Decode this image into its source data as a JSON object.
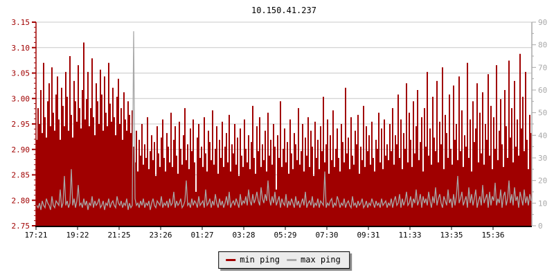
{
  "window": {
    "title": "10.150.41.237"
  },
  "colors": {
    "min_ping": "#a00000",
    "max_ping": "#a8a8a8",
    "grid": "#c8c8c8",
    "left_axis": "#a00000",
    "right_axis": "#a8a8a8",
    "bottom_axis": "#000000",
    "tick_label_left": "#a00000",
    "tick_label_right": "#a8a8a8",
    "tick_label_x": "#000000"
  },
  "legend": {
    "items": [
      {
        "label": "min ping",
        "color": "#a00000"
      },
      {
        "label": "max ping",
        "color": "#a8a8a8"
      }
    ]
  },
  "chart_data": {
    "type": "area",
    "title": "10.150.41.237",
    "xlabel": "",
    "ylabel": "",
    "x_tick_labels": [
      "17:21",
      "19:22",
      "21:25",
      "23:26",
      "01:27",
      "03:28",
      "05:29",
      "07:30",
      "09:31",
      "11:33",
      "13:35",
      "15:36"
    ],
    "left_axis_tick_labels": [
      "3.15",
      "3.10",
      "3.05",
      "3.00",
      "2.95",
      "2.90",
      "2.85",
      "2.80",
      "2.75"
    ],
    "left_ylim": [
      2.75,
      3.15
    ],
    "right_axis_tick_labels": [
      "90",
      "80",
      "70",
      "60",
      "50",
      "40",
      "30",
      "20",
      "10",
      "0"
    ],
    "right_ylim": [
      0,
      90
    ],
    "grid": "horizontal-only",
    "legend_position": "bottom-center",
    "series_value_units": "right-axis units (0-90); left axis equivalent = 2.75 + v/90*0.40",
    "series": [
      {
        "name": "min ping",
        "style": "filled-bars-from-baseline",
        "color": "#a00000",
        "values": [
          38,
          52,
          45,
          60,
          41,
          72,
          48,
          39,
          55,
          63,
          44,
          70,
          50,
          42,
          58,
          66,
          47,
          38,
          61,
          53,
          44,
          68,
          57,
          42,
          75,
          49,
          39,
          64,
          55,
          46,
          71,
          52,
          43,
          60,
          81,
          47,
          56,
          68,
          44,
          52,
          74,
          48,
          40,
          63,
          55,
          45,
          69,
          58,
          42,
          66,
          50,
          44,
          72,
          54,
          46,
          61,
          48,
          40,
          57,
          65,
          45,
          52,
          38,
          59,
          47,
          42,
          55,
          49,
          41,
          51,
          35,
          28,
          42,
          24,
          38,
          31,
          45,
          27,
          36,
          30,
          48,
          25,
          33,
          40,
          29,
          37,
          22,
          44,
          32,
          26,
          39,
          47,
          30,
          24,
          41,
          35,
          28,
          50,
          26,
          38,
          44,
          31,
          23,
          46,
          34,
          27,
          40,
          52,
          29,
          36,
          25,
          43,
          33,
          47,
          28,
          15,
          39,
          45,
          30,
          35,
          26,
          48,
          32,
          24,
          42,
          37,
          29,
          51,
          27,
          34,
          44,
          23,
          38,
          30,
          46,
          26,
          35,
          41,
          28,
          49,
          24,
          36,
          32,
          45,
          27,
          39,
          22,
          43,
          31,
          26,
          47,
          34,
          28,
          40,
          25,
          37,
          53,
          30,
          23,
          44,
          33,
          48,
          26,
          36,
          29,
          42,
          24,
          50,
          31,
          38,
          27,
          45,
          35,
          16,
          40,
          30,
          55,
          26,
          34,
          43,
          28,
          37,
          23,
          47,
          32,
          25,
          41,
          36,
          29,
          52,
          27,
          33,
          45,
          24,
          39,
          31,
          48,
          26,
          42,
          35,
          22,
          46,
          30,
          38,
          25,
          44,
          33,
          57,
          28,
          36,
          47,
          23,
          40,
          29,
          51,
          26,
          34,
          43,
          30,
          24,
          45,
          37,
          28,
          61,
          32,
          39,
          25,
          48,
          31,
          27,
          42,
          36,
          49,
          23,
          35,
          29,
          53,
          26,
          44,
          33,
          40,
          27,
          46,
          30,
          24,
          38,
          34,
          50,
          28,
          43,
          25,
          47,
          31,
          36,
          29,
          45,
          33,
          52,
          27,
          40,
          36,
          58,
          30,
          47,
          25,
          41,
          34,
          63,
          28,
          50,
          38,
          26,
          55,
          32,
          44,
          60,
          29,
          37,
          48,
          24,
          52,
          35,
          68,
          31,
          43,
          27,
          57,
          39,
          33,
          64,
          28,
          46,
          36,
          70,
          25,
          49,
          41,
          30,
          58,
          34,
          27,
          62,
          38,
          45,
          29,
          66,
          33,
          51,
          26,
          40,
          35,
          72,
          30,
          47,
          24,
          55,
          37,
          43,
          63,
          28,
          50,
          32,
          59,
          27,
          45,
          38,
          67,
          31,
          53,
          25,
          48,
          34,
          71,
          29,
          42,
          56,
          36,
          26,
          60,
          44,
          30,
          73,
          39,
          52,
          28,
          64,
          35,
          47,
          31,
          76,
          43,
          57,
          33,
          68,
          38,
          25,
          49,
          41
        ]
      },
      {
        "name": "max ping",
        "style": "line",
        "color": "#a8a8a8",
        "values": [
          9,
          8,
          10,
          7,
          11,
          9,
          8,
          12,
          10,
          9,
          7,
          13,
          9,
          8,
          11,
          10,
          9,
          16,
          8,
          10,
          22,
          9,
          11,
          8,
          10,
          25,
          9,
          12,
          8,
          11,
          18,
          9,
          10,
          8,
          12,
          9,
          11,
          7,
          10,
          9,
          13,
          8,
          11,
          9,
          10,
          12,
          8,
          9,
          11,
          7,
          10,
          9,
          12,
          8,
          10,
          11,
          9,
          8,
          13,
          10,
          9,
          11,
          8,
          10,
          9,
          12,
          7,
          10,
          8,
          9,
          86,
          12,
          9,
          10,
          8,
          11,
          9,
          12,
          8,
          10,
          9,
          11,
          7,
          10,
          12,
          9,
          8,
          11,
          10,
          9,
          13,
          8,
          10,
          9,
          11,
          8,
          12,
          9,
          10,
          15,
          8,
          11,
          9,
          10,
          12,
          8,
          9,
          11,
          20,
          9,
          10,
          8,
          12,
          9,
          11,
          10,
          8,
          13,
          9,
          10,
          11,
          8,
          16,
          9,
          10,
          12,
          8,
          11,
          9,
          14,
          10,
          8,
          12,
          9,
          11,
          8,
          10,
          13,
          9,
          15,
          8,
          10,
          11,
          9,
          12,
          10,
          8,
          14,
          9,
          11,
          10,
          13,
          9,
          16,
          11,
          9,
          14,
          10,
          12,
          15,
          11,
          9,
          17,
          12,
          10,
          14,
          11,
          20,
          12,
          9,
          13,
          10,
          15,
          9,
          11,
          13,
          8,
          12,
          10,
          9,
          14,
          8,
          11,
          9,
          12,
          10,
          8,
          13,
          9,
          11,
          8,
          10,
          12,
          9,
          15,
          8,
          10,
          11,
          9,
          13,
          8,
          10,
          9,
          12,
          8,
          11,
          10,
          9,
          24,
          8,
          10,
          9,
          11,
          12,
          8,
          10,
          9,
          13,
          11,
          8,
          10,
          9,
          12,
          8,
          10,
          11,
          9,
          8,
          13,
          9,
          10,
          8,
          11,
          9,
          10,
          12,
          8,
          9,
          11,
          8,
          10,
          9,
          12,
          10,
          8,
          11,
          9,
          10,
          8,
          12,
          9,
          10,
          11,
          8,
          10,
          9,
          12,
          8,
          11,
          13,
          9,
          10,
          14,
          8,
          12,
          9,
          11,
          15,
          9,
          10,
          13,
          8,
          12,
          10,
          16,
          9,
          11,
          14,
          8,
          13,
          10,
          12,
          9,
          15,
          11,
          8,
          13,
          10,
          17,
          9,
          12,
          14,
          10,
          8,
          13,
          11,
          9,
          16,
          10,
          12,
          8,
          14,
          9,
          13,
          22,
          10,
          12,
          15,
          9,
          11,
          13,
          8,
          17,
          10,
          14,
          9,
          12,
          16,
          8,
          11,
          13,
          9,
          18,
          10,
          12,
          14,
          8,
          15,
          9,
          13,
          11,
          19,
          9,
          12,
          10,
          16,
          8,
          13,
          15,
          9,
          12,
          20,
          10,
          14,
          9,
          17,
          11,
          13,
          8,
          15,
          12,
          9,
          16,
          10,
          13,
          9,
          14,
          11
        ]
      }
    ]
  }
}
